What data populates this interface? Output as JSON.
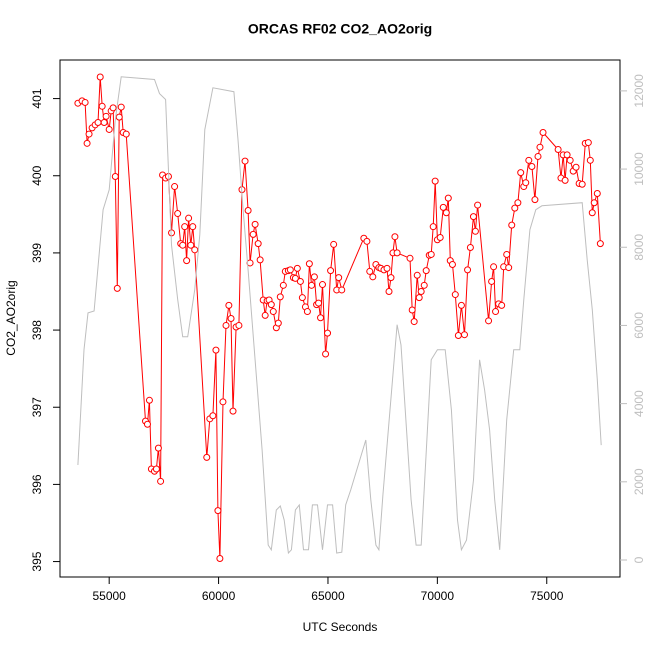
{
  "chart_data": {
    "type": "line",
    "title": "ORCAS RF02 CO2_AO2orig",
    "x_label": "UTC Seconds",
    "y_label": "CO2_AO2orig",
    "xlim": [
      52752,
      78348
    ],
    "xticks": [
      55000,
      60000,
      65000,
      70000,
      75000
    ],
    "ylim": [
      394.8,
      401.5
    ],
    "yticks": [
      395,
      396,
      397,
      398,
      399,
      400,
      401
    ],
    "y2lim": [
      -435,
      12790
    ],
    "y2ticks": [
      0,
      2000,
      4000,
      6000,
      8000,
      10000,
      12000
    ],
    "series": [
      {
        "color": "#ff0000",
        "markers": true,
        "x": [
          53570,
          53760,
          53900,
          53990,
          54080,
          54220,
          54360,
          54490,
          54590,
          54680,
          54770,
          54860,
          55000,
          55090,
          55180,
          55280,
          55370,
          55460,
          55550,
          55640,
          55780,
          56660,
          56750,
          56840,
          56930,
          57070,
          57160,
          57250,
          57350,
          57440,
          57580,
          57710,
          57850,
          57990,
          58130,
          58270,
          58360,
          58450,
          58540,
          58630,
          58730,
          58820,
          58910,
          59460,
          59600,
          59740,
          59880,
          59970,
          60060,
          60200,
          60340,
          60470,
          60570,
          60660,
          60800,
          60930,
          61070,
          61210,
          61350,
          61440,
          61580,
          61670,
          61810,
          61900,
          62040,
          62130,
          62220,
          62310,
          62410,
          62500,
          62640,
          62730,
          62820,
          62960,
          63050,
          63190,
          63280,
          63420,
          63510,
          63600,
          63740,
          63830,
          63970,
          64060,
          64150,
          64250,
          64380,
          64480,
          64570,
          64660,
          64750,
          64890,
          64980,
          65120,
          65260,
          65400,
          65490,
          65630,
          66640,
          66780,
          66910,
          67050,
          67190,
          67330,
          67420,
          67560,
          67700,
          67790,
          67880,
          67970,
          68060,
          68160,
          68750,
          68850,
          68940,
          69080,
          69170,
          69260,
          69400,
          69490,
          69630,
          69720,
          69810,
          69900,
          70000,
          70130,
          70270,
          70410,
          70500,
          70590,
          70690,
          70820,
          70960,
          71100,
          71240,
          71380,
          71510,
          71650,
          71740,
          71840,
          72340,
          72480,
          72570,
          72660,
          72800,
          72940,
          73030,
          73170,
          73260,
          73400,
          73540,
          73680,
          73810,
          73950,
          74040,
          74180,
          74320,
          74460,
          74600,
          74690,
          74830,
          75520,
          75650,
          75750,
          75840,
          75930,
          76070,
          76210,
          76340,
          76480,
          76620,
          76760,
          76900,
          76990,
          77080,
          77170,
          77310,
          77450
        ],
        "values": [
          400.94,
          400.97,
          400.95,
          400.42,
          400.54,
          400.62,
          400.66,
          400.69,
          401.28,
          400.9,
          400.69,
          400.77,
          400.6,
          400.84,
          400.88,
          399.99,
          398.54,
          400.76,
          400.89,
          400.56,
          400.54,
          396.82,
          396.78,
          397.09,
          396.2,
          396.17,
          396.2,
          396.47,
          396.04,
          400.01,
          399.97,
          399.99,
          399.26,
          399.86,
          399.51,
          399.12,
          399.1,
          399.34,
          398.9,
          399.45,
          399.1,
          399.34,
          399.04,
          396.35,
          396.85,
          396.89,
          397.74,
          395.66,
          395.04,
          397.07,
          398.06,
          398.32,
          398.15,
          396.95,
          398.04,
          398.06,
          399.82,
          400.19,
          399.55,
          398.87,
          399.24,
          399.37,
          399.12,
          398.91,
          398.39,
          398.19,
          398.38,
          398.39,
          398.33,
          398.24,
          398.03,
          398.09,
          398.43,
          398.58,
          398.76,
          398.77,
          398.78,
          398.68,
          398.67,
          398.8,
          398.63,
          398.42,
          398.3,
          398.24,
          398.86,
          398.58,
          398.69,
          398.33,
          398.35,
          398.16,
          398.59,
          397.69,
          397.96,
          398.77,
          399.11,
          398.52,
          398.68,
          398.52,
          399.19,
          399.15,
          398.76,
          398.69,
          398.85,
          398.81,
          398.8,
          398.78,
          398.8,
          398.5,
          398.68,
          399.0,
          399.21,
          399.0,
          398.93,
          398.26,
          398.11,
          398.71,
          398.42,
          398.5,
          398.58,
          398.77,
          398.97,
          398.98,
          399.34,
          399.93,
          399.17,
          399.2,
          399.59,
          399.52,
          399.71,
          398.9,
          398.85,
          398.46,
          397.93,
          398.32,
          397.94,
          398.78,
          399.07,
          399.47,
          399.28,
          399.62,
          398.12,
          398.63,
          398.82,
          398.24,
          398.34,
          398.32,
          398.82,
          398.98,
          398.81,
          399.36,
          399.58,
          399.65,
          400.04,
          399.86,
          399.91,
          400.2,
          400.12,
          399.69,
          400.25,
          400.37,
          400.56,
          400.34,
          399.97,
          400.27,
          399.94,
          400.27,
          400.2,
          400.06,
          400.11,
          399.9,
          399.89,
          400.42,
          400.43,
          400.2,
          399.52,
          399.65,
          399.77,
          399.12
        ]
      },
      {
        "color": "#bebebe",
        "axis": "y2",
        "x": [
          53570,
          53850,
          54030,
          54310,
          54720,
          55000,
          55280,
          55550,
          57070,
          57300,
          57580,
          57850,
          58130,
          58360,
          58590,
          58910,
          59140,
          59370,
          59740,
          60700,
          60890,
          61120,
          61350,
          61670,
          61990,
          62270,
          62410,
          62640,
          62820,
          63000,
          63190,
          63330,
          63510,
          63690,
          63880,
          64110,
          64290,
          64520,
          64750,
          64980,
          65210,
          65400,
          65630,
          65810,
          66040,
          66730,
          66960,
          67190,
          67330,
          67510,
          68160,
          68340,
          68800,
          69030,
          69260,
          69720,
          70000,
          70360,
          70640,
          70920,
          71100,
          71330,
          71650,
          71930,
          72160,
          72390,
          72620,
          72850,
          73170,
          73490,
          73770,
          73950,
          74230,
          74500,
          74780,
          76620,
          76850,
          77080,
          77310,
          77490
        ],
        "values": [
          2430,
          5380,
          6320,
          6370,
          8960,
          9470,
          11260,
          12360,
          12290,
          11930,
          11780,
          8060,
          6660,
          5710,
          5710,
          6910,
          8320,
          11010,
          12080,
          11980,
          10750,
          8960,
          7420,
          5120,
          2820,
          380,
          260,
          1280,
          1380,
          1020,
          180,
          260,
          1280,
          1410,
          260,
          260,
          1410,
          1410,
          260,
          1410,
          1410,
          180,
          200,
          1410,
          1790,
          3070,
          1540,
          380,
          260,
          1660,
          6020,
          5500,
          1540,
          380,
          380,
          5120,
          5380,
          5380,
          3840,
          1020,
          260,
          510,
          2050,
          5120,
          4350,
          3330,
          1540,
          260,
          3580,
          5380,
          5380,
          6660,
          8450,
          8960,
          9060,
          9140,
          7680,
          6400,
          4610,
          2940
        ]
      }
    ]
  }
}
